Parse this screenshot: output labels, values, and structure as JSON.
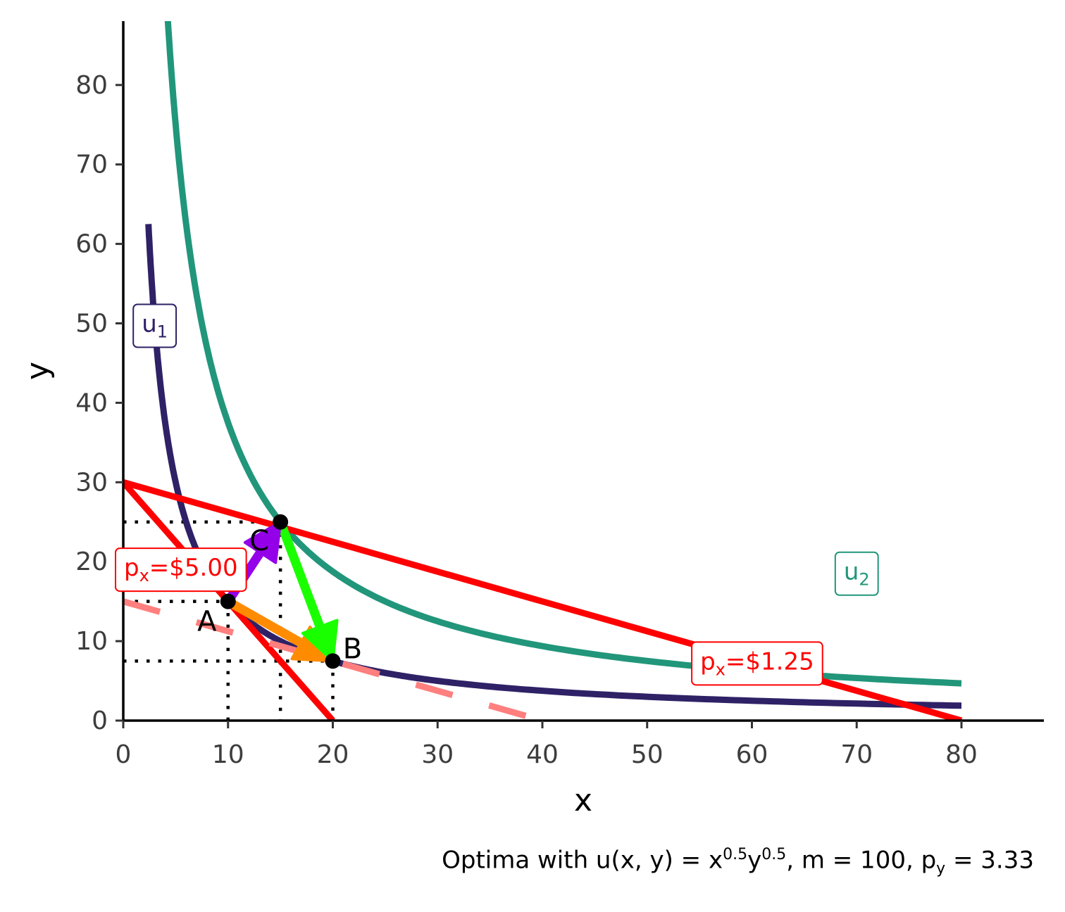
{
  "chart_data": {
    "type": "line",
    "xlabel": "x",
    "ylabel": "y",
    "xlim": [
      0,
      88
    ],
    "ylim": [
      0,
      88
    ],
    "x_ticks": [
      0,
      10,
      20,
      30,
      40,
      50,
      60,
      70,
      80
    ],
    "y_ticks": [
      0,
      10,
      20,
      30,
      40,
      50,
      60,
      70,
      80
    ],
    "grid": false,
    "colors": {
      "budget": "#ff0000",
      "hidden_budget": "#ff7f7f",
      "u1": "#2f2166",
      "u2": "#21967a",
      "arrow_orange": "#ff8c00",
      "arrow_green": "#1aff00",
      "arrow_purple": "#9400e8",
      "point": "#000000"
    },
    "budget_lines": [
      {
        "label": "px=$5.00",
        "px": 5.0,
        "points": [
          [
            0,
            30
          ],
          [
            20,
            0
          ]
        ]
      },
      {
        "label": "px=$1.25",
        "px": 1.25,
        "points": [
          [
            0,
            30
          ],
          [
            80,
            0
          ]
        ]
      },
      {
        "label": "",
        "dashed": true,
        "points": [
          [
            0,
            15
          ],
          [
            40,
            0
          ]
        ]
      }
    ],
    "indifference_curves": [
      {
        "name": "u1",
        "formula": "y = 150 / x",
        "x_range": [
          2.4,
          80
        ]
      },
      {
        "name": "u2",
        "formula": "y = 375 / x",
        "x_range": [
          2.4,
          80
        ]
      }
    ],
    "points": [
      {
        "label": "A",
        "x": 10,
        "y": 15
      },
      {
        "label": "B",
        "x": 20,
        "y": 7.5
      },
      {
        "label": "C",
        "x": 15,
        "y": 25
      }
    ],
    "arrows": [
      {
        "from": "A",
        "to": "B",
        "color": "orange"
      },
      {
        "from": "C",
        "to": "B",
        "color": "green"
      },
      {
        "from": "A",
        "to": "C",
        "color": "purple"
      }
    ]
  },
  "labels": {
    "u1": {
      "base": "u",
      "sub": "1"
    },
    "u2": {
      "base": "u",
      "sub": "2"
    },
    "px_high": {
      "base": "p",
      "sub": "x",
      "rest": "=$5.00"
    },
    "px_low": {
      "base": "p",
      "sub": "x",
      "rest": "=$1.25"
    }
  },
  "caption": {
    "prefix": "Optima with u",
    "func": "(x, y) = x",
    "exp1": "0.5",
    "mid": "y",
    "exp2": "0.5",
    "tail": ", m = 100, p",
    "sub": "y",
    "end": " = 3.33"
  }
}
